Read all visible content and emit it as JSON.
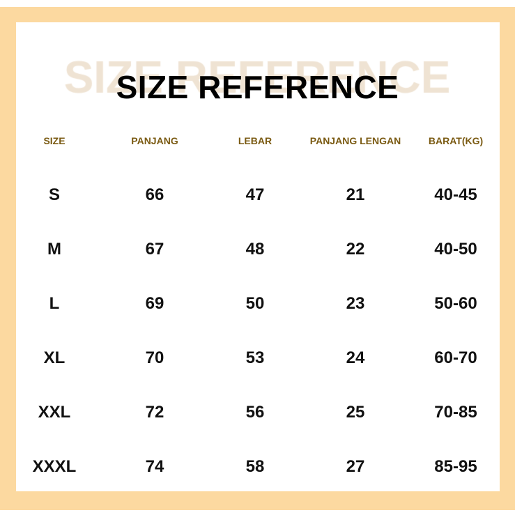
{
  "title": "SIZE REFERENCE",
  "watermark": "SIZE REFERENCE",
  "colors": {
    "frame": "#fcd9a0",
    "header_text": "#7a5a12",
    "watermark": "#efe3d3"
  },
  "headers": [
    "SIZE",
    "PANJANG",
    "LEBAR",
    "PANJANG LENGAN",
    "BARAT(KG)"
  ],
  "rows": [
    [
      "S",
      "66",
      "47",
      "21",
      "40-45"
    ],
    [
      "M",
      "67",
      "48",
      "22",
      "40-50"
    ],
    [
      "L",
      "69",
      "50",
      "23",
      "50-60"
    ],
    [
      "XL",
      "70",
      "53",
      "24",
      "60-70"
    ],
    [
      "XXL",
      "72",
      "56",
      "25",
      "70-85"
    ],
    [
      "XXXL",
      "74",
      "58",
      "27",
      "85-95"
    ]
  ]
}
